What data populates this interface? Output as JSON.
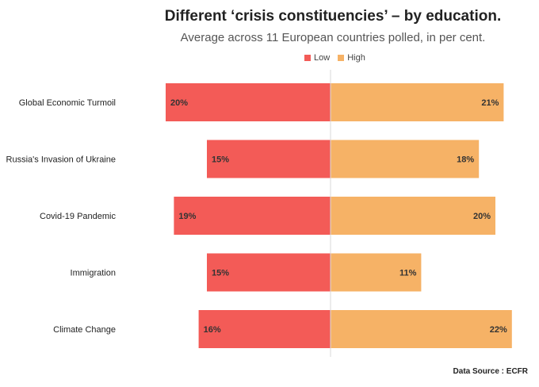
{
  "header": {
    "title": "Different ‘crisis constituencies’ – by education.",
    "subtitle": "Average across 11 European countries polled, in per cent."
  },
  "legend": {
    "items": [
      {
        "label": "Low",
        "color": "#f35b57"
      },
      {
        "label": "High",
        "color": "#f6b266"
      }
    ]
  },
  "footer": {
    "source": "Data Source : ECFR"
  },
  "chart_data": {
    "type": "bar",
    "orientation": "horizontal-diverging",
    "title": "Different ‘crisis constituencies’ – by education.",
    "subtitle": "Average across 11 European countries polled, in per cent.",
    "categories": [
      "Global Economic Turmoil",
      "Russia's Invasion of Ukraine",
      "Covid-19 Pandemic",
      "Immigration",
      "Climate Change"
    ],
    "series": [
      {
        "name": "Low",
        "color": "#f35b57",
        "values": [
          20,
          15,
          19,
          15,
          16
        ]
      },
      {
        "name": "High",
        "color": "#f6b266",
        "values": [
          21,
          18,
          20,
          11,
          22
        ]
      }
    ],
    "value_suffix": "%",
    "legend_position": "top",
    "grid": false
  }
}
